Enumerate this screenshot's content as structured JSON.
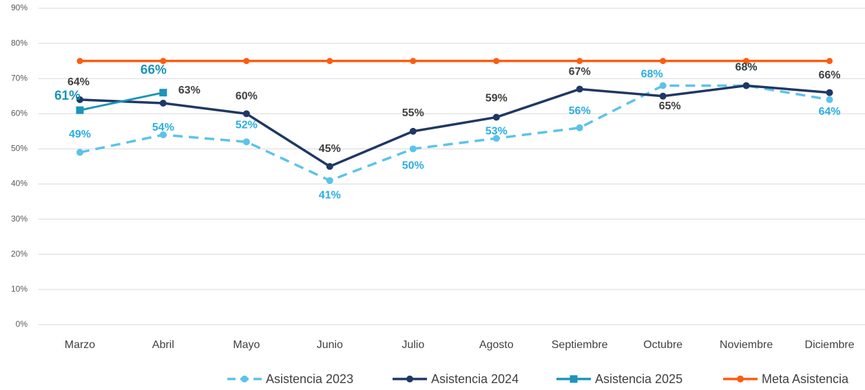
{
  "chart_data": {
    "type": "line",
    "categories": [
      "Marzo",
      "Abril",
      "Mayo",
      "Junio",
      "Julio",
      "Agosto",
      "Septiembre",
      "Octubre",
      "Noviembre",
      "Diciembre"
    ],
    "series": [
      {
        "name": "Asistencia 2023",
        "color": "#5bc3ea",
        "dashed": true,
        "marker": "circle",
        "values": [
          49,
          54,
          52,
          41,
          50,
          53,
          56,
          68,
          68,
          64
        ],
        "value_labels": [
          "49%",
          "54%",
          "52%",
          "41%",
          "50%",
          "53%",
          "56%",
          "68%",
          "68%",
          "64%"
        ]
      },
      {
        "name": "Asistencia 2024",
        "color": "#1f3864",
        "dashed": false,
        "marker": "circle",
        "values": [
          64,
          63,
          60,
          45,
          55,
          59,
          67,
          65,
          68,
          66
        ],
        "value_labels": [
          "64%",
          "63%",
          "60%",
          "45%",
          "55%",
          "59%",
          "67%",
          "65%",
          "68%",
          "66%"
        ]
      },
      {
        "name": "Asistencia 2025",
        "color": "#1b95b8",
        "dashed": false,
        "marker": "square",
        "values": [
          61,
          66,
          null,
          null,
          null,
          null,
          null,
          null,
          null,
          null
        ],
        "value_labels": [
          "61%",
          "66%",
          null,
          null,
          null,
          null,
          null,
          null,
          null,
          null
        ]
      },
      {
        "name": "Meta Asistencia",
        "color": "#ff5b0f",
        "dashed": false,
        "marker": "circle",
        "values": [
          75,
          75,
          75,
          75,
          75,
          75,
          75,
          75,
          75,
          75
        ]
      }
    ],
    "ylim": [
      0,
      90
    ],
    "yticks": [
      {
        "value": 0,
        "label": "0%"
      },
      {
        "value": 10,
        "label": "10%"
      },
      {
        "value": 20,
        "label": "20%"
      },
      {
        "value": 30,
        "label": "30%"
      },
      {
        "value": 40,
        "label": "40%"
      },
      {
        "value": 50,
        "label": "50%"
      },
      {
        "value": 60,
        "label": "60%"
      },
      {
        "value": 70,
        "label": "70%"
      },
      {
        "value": 80,
        "label": "80%"
      },
      {
        "value": 90,
        "label": "90%"
      }
    ],
    "grid": true,
    "legend": "bottom"
  }
}
